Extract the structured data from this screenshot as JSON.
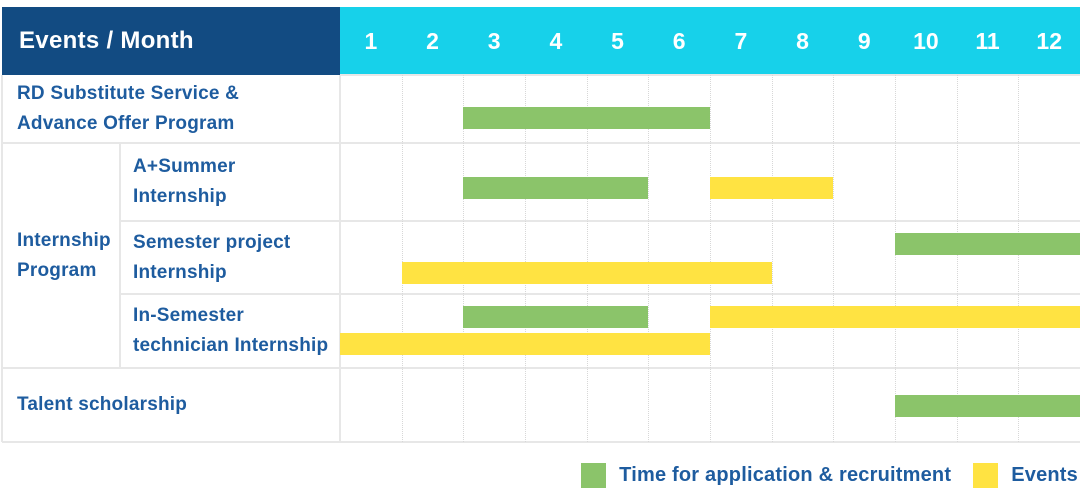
{
  "header": {
    "title": "Events / Month",
    "months": [
      "1",
      "2",
      "3",
      "4",
      "5",
      "6",
      "7",
      "8",
      "9",
      "10",
      "11",
      "12"
    ]
  },
  "colors": {
    "header_bg": "#124B82",
    "month_header_bg": "#17D1EA",
    "header_text": "#FFFFFF",
    "label_text": "#1E5C9F",
    "grid_line": "#E7E7E7",
    "application": "#8BC46A",
    "event": "#FFE342"
  },
  "legend": {
    "items": [
      {
        "kind": "application",
        "color": "#8BC46A",
        "label": "Time for application & recruitment"
      },
      {
        "kind": "event",
        "color": "#FFE342",
        "label": "Events"
      }
    ]
  },
  "chart_data": {
    "type": "gantt",
    "title": "Events / Month",
    "time_unit": "month",
    "x_range": [
      1,
      12
    ],
    "x_ticks": [
      "1",
      "2",
      "3",
      "4",
      "5",
      "6",
      "7",
      "8",
      "9",
      "10",
      "11",
      "12"
    ],
    "bar_kinds": {
      "application": "Time for application & recruitment",
      "event": "Events"
    },
    "group": {
      "label": "Internship Program",
      "label_lines": [
        "Internship",
        "Program"
      ],
      "start_row": 1,
      "end_row": 3
    },
    "rows": [
      {
        "id": "rd-substitute-service",
        "label": "RD Substitute Service & Advance Offer Program",
        "label_lines": [
          "RD Substitute Service &",
          "Advance Offer Program"
        ],
        "in_group": false,
        "bars": [
          {
            "kind": "application",
            "start_month": 3,
            "end_month": 6,
            "line": 0
          }
        ]
      },
      {
        "id": "a-plus-summer-internship",
        "label": "A+Summer Internship",
        "label_lines": [
          "A+Summer",
          "Internship"
        ],
        "in_group": true,
        "bars": [
          {
            "kind": "application",
            "start_month": 3,
            "end_month": 5,
            "line": 0
          },
          {
            "kind": "event",
            "start_month": 7,
            "end_month": 8,
            "line": 0
          }
        ]
      },
      {
        "id": "semester-project-internship",
        "label": "Semester project Internship",
        "label_lines": [
          "Semester project",
          "Internship"
        ],
        "in_group": true,
        "bars": [
          {
            "kind": "application",
            "start_month": 10,
            "end_month": 12,
            "line": 0
          },
          {
            "kind": "event",
            "start_month": 2,
            "end_month": 7,
            "line": 1
          }
        ]
      },
      {
        "id": "in-semester-technician-internship",
        "label": "In-Semester technician Internship",
        "label_lines": [
          "In-Semester",
          "technician Internship"
        ],
        "in_group": true,
        "bars": [
          {
            "kind": "application",
            "start_month": 3,
            "end_month": 5,
            "line": 0
          },
          {
            "kind": "event",
            "start_month": 7,
            "end_month": 12,
            "line": 0
          },
          {
            "kind": "event",
            "start_month": 1,
            "end_month": 6,
            "line": 1
          }
        ]
      },
      {
        "id": "talent-scholarship",
        "label": "Talent scholarship",
        "label_lines": [
          "Talent scholarship"
        ],
        "in_group": false,
        "bars": [
          {
            "kind": "application",
            "start_month": 10,
            "end_month": 12,
            "line": 0
          }
        ]
      }
    ]
  }
}
